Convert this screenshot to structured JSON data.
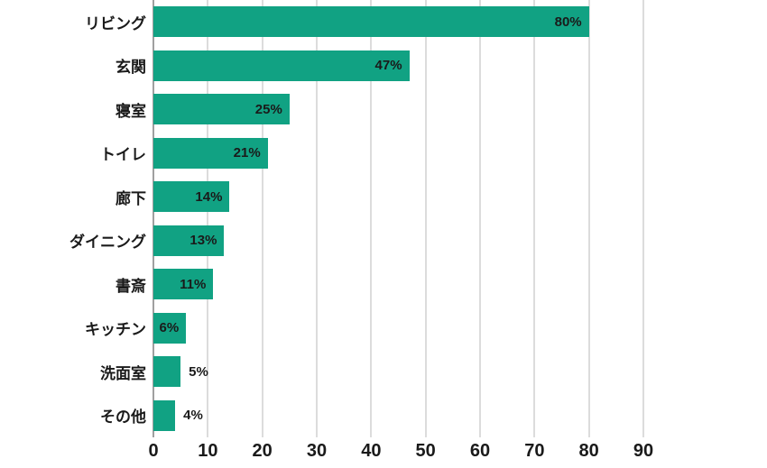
{
  "chart_data": {
    "type": "bar",
    "orientation": "horizontal",
    "title": "",
    "xlabel": "",
    "ylabel": "",
    "categories": [
      "リビング",
      "玄関",
      "寝室",
      "トイレ",
      "廊下",
      "ダイニング",
      "書斎",
      "キッチン",
      "洗面室",
      "その他"
    ],
    "values": [
      80,
      47,
      25,
      21,
      14,
      13,
      11,
      6,
      5,
      4
    ],
    "value_labels": [
      "80%",
      "47%",
      "25%",
      "21%",
      "14%",
      "13%",
      "11%",
      "6%",
      "5%",
      "4%"
    ],
    "x_ticks": [
      0,
      10,
      20,
      30,
      40,
      50,
      60,
      70,
      80,
      90
    ],
    "xlim": [
      0,
      90
    ],
    "grid": true,
    "legend": false,
    "bar_color": "#11A283",
    "gridline_color": "#DCDCDC",
    "axis_line_color": "#A0A0A0",
    "text_color": "#1A1A1A",
    "background_color": "#FFFFFF"
  }
}
